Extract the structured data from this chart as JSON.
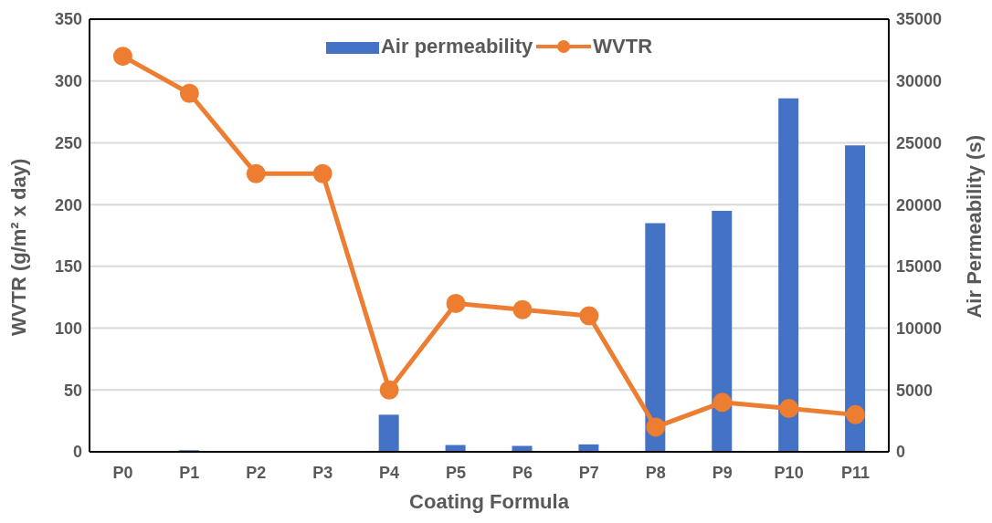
{
  "chart_data": {
    "type": "bar",
    "xlabel": "Coating Formula",
    "ylabel": "WVTR (g/m² x day)",
    "y2label": "Air Permeability (s)",
    "categories": [
      "P0",
      "P1",
      "P2",
      "P3",
      "P4",
      "P5",
      "P6",
      "P7",
      "P8",
      "P9",
      "P10",
      "P11"
    ],
    "series": [
      {
        "name": "Air permeability",
        "axis": "y2",
        "color": "#4472c4",
        "values": [
          null,
          130,
          null,
          null,
          3000,
          550,
          480,
          600,
          18500,
          19500,
          28600,
          24800
        ]
      },
      {
        "name": "WVTR",
        "type": "line",
        "color": "#ed7d31",
        "values": [
          320,
          290,
          225,
          225,
          50,
          120,
          115,
          110,
          20,
          40,
          35,
          30
        ]
      }
    ],
    "ylim": [
      0,
      350
    ],
    "yticks": [
      0,
      50,
      100,
      150,
      200,
      250,
      300,
      350
    ],
    "y2lim": [
      0,
      35000
    ],
    "y2ticks": [
      0,
      5000,
      10000,
      15000,
      20000,
      25000,
      30000,
      35000
    ],
    "grid": "y",
    "legend": "top",
    "marker": "circle"
  }
}
